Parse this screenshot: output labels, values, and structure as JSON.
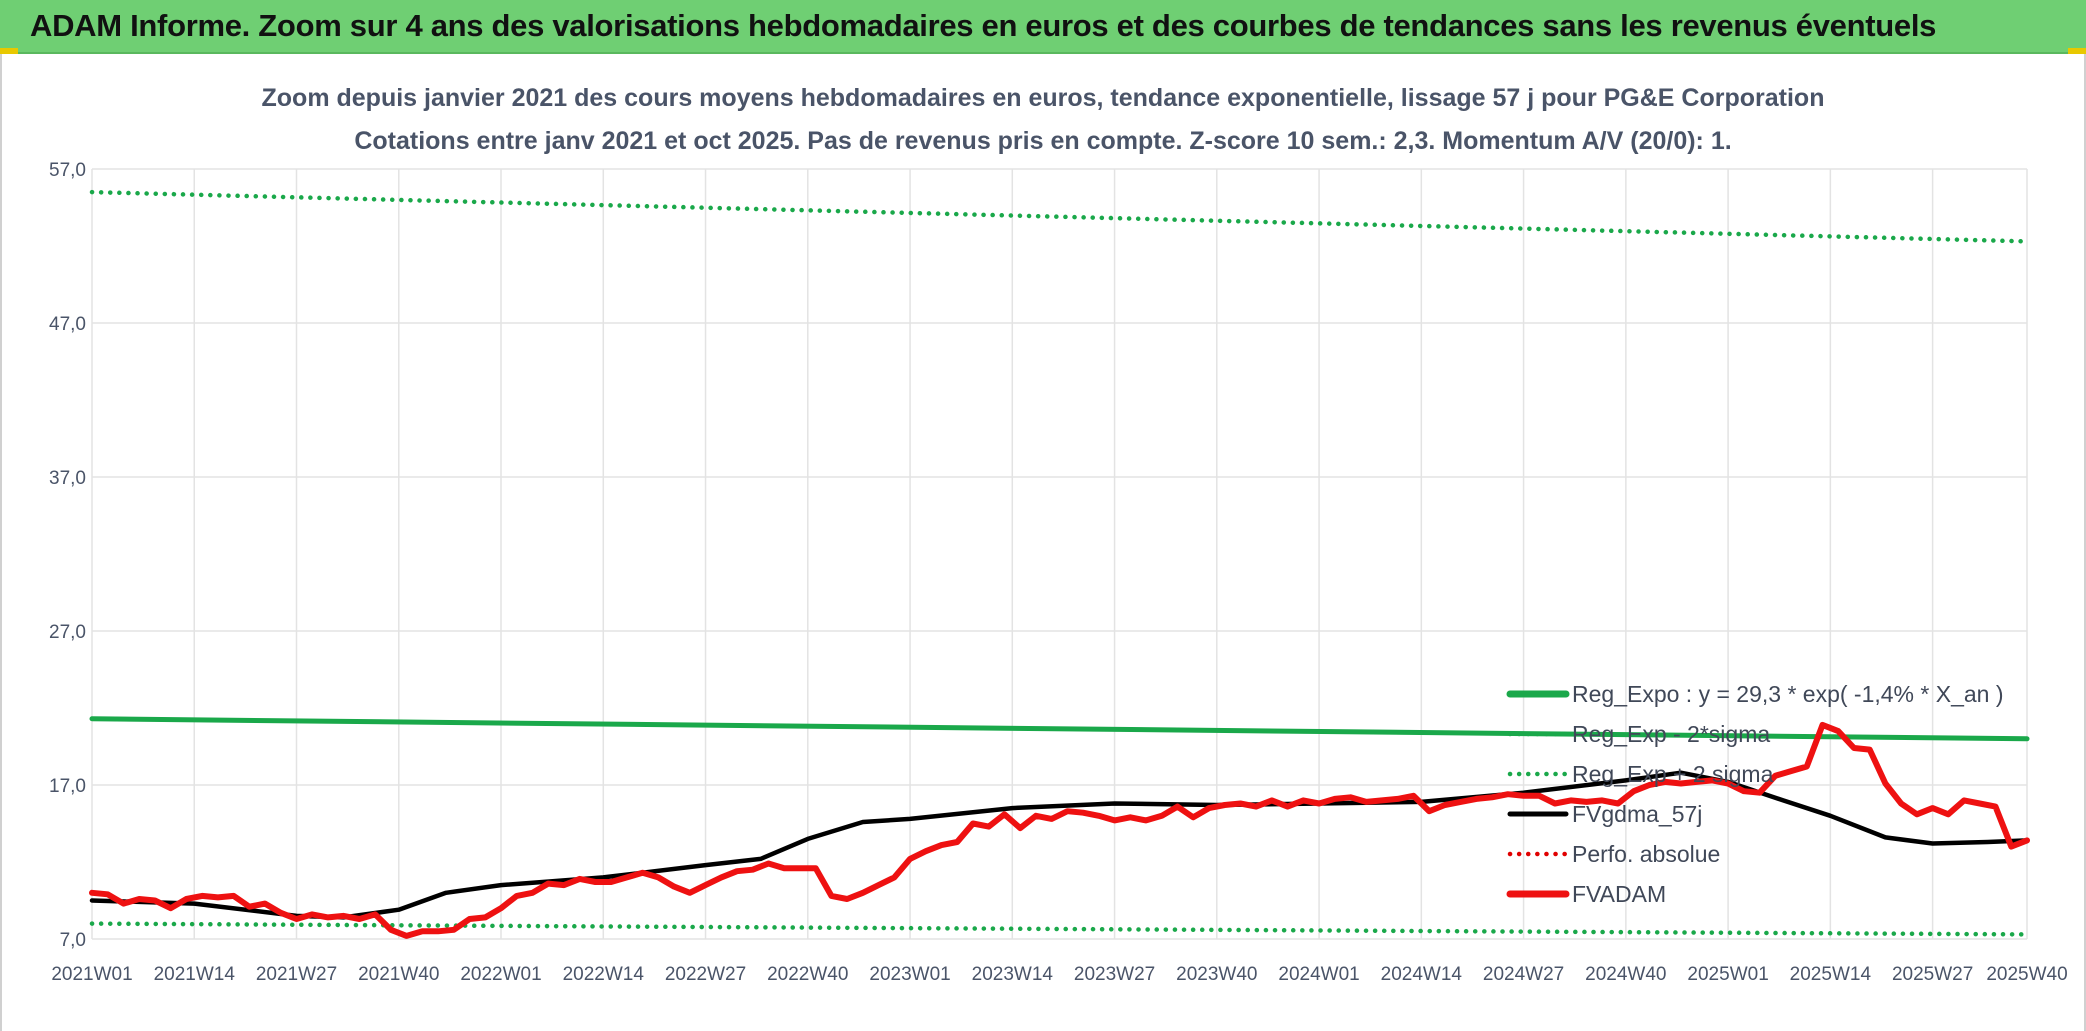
{
  "header": {
    "title": "ADAM Informe. Zoom sur 4 ans des valorisations hebdomadaires en euros et des courbes de tendances sans les revenus éventuels"
  },
  "chart_data": {
    "type": "line",
    "title": "Zoom depuis janvier 2021 des cours moyens hebdomadaires en euros, tendance exponentielle, lissage 57 j pour PG&E Corporation",
    "subtitle": "Cotations entre janv 2021 et oct 2025. Pas de revenus pris en compte. Z-score 10 sem.: 2,3. Momentum A/V (20/0): 1.",
    "xlabel": "",
    "ylabel": "",
    "ylim": [
      7,
      57
    ],
    "yticks": [
      "57,0",
      "47,0",
      "37,0",
      "27,0",
      "17,0",
      "7,0"
    ],
    "yticks_values": [
      57,
      47,
      37,
      27,
      17,
      7
    ],
    "x_tick_labels": [
      "2021W01",
      "2021W14",
      "2021W27",
      "2021W40",
      "2022W01",
      "2022W14",
      "2022W27",
      "2022W40",
      "2023W01",
      "2023W14",
      "2023W27",
      "2023W40",
      "2024W01",
      "2024W14",
      "2024W27",
      "2024W40",
      "2025W01",
      "2025W14",
      "2025W27",
      "2025W40"
    ],
    "grid": true,
    "legend_position": "bottom-right",
    "series": [
      {
        "name": "Reg_Expo : y = 29,3 * exp( -1,4% *  X_an )",
        "color": "#1aa84a",
        "style": "solid",
        "points": [
          [
            0,
            21.3
          ],
          [
            246,
            20.0
          ]
        ]
      },
      {
        "name": "Reg_Exp - 2*sigma",
        "color": "#1aa84a",
        "style": "dotted",
        "points": [
          [
            0,
            8.0
          ],
          [
            246,
            7.3
          ]
        ]
      },
      {
        "name": "Reg_Exp + 2 sigma",
        "color": "#1aa84a",
        "style": "dotted",
        "points": [
          [
            0,
            55.5
          ],
          [
            246,
            52.3
          ]
        ]
      },
      {
        "name": "FVgdma_57j",
        "color": "#000000",
        "style": "solid",
        "points": [
          [
            0,
            9.5
          ],
          [
            13,
            9.3
          ],
          [
            26,
            8.5
          ],
          [
            32,
            8.4
          ],
          [
            39,
            8.9
          ],
          [
            45,
            10.0
          ],
          [
            52,
            10.5
          ],
          [
            65,
            11.0
          ],
          [
            78,
            11.8
          ],
          [
            85,
            12.2
          ],
          [
            91,
            13.5
          ],
          [
            98,
            14.6
          ],
          [
            104,
            14.8
          ],
          [
            117,
            15.5
          ],
          [
            130,
            15.8
          ],
          [
            143,
            15.7
          ],
          [
            156,
            15.8
          ],
          [
            169,
            15.9
          ],
          [
            182,
            16.5
          ],
          [
            195,
            17.3
          ],
          [
            202,
            17.8
          ],
          [
            208,
            17.2
          ],
          [
            215,
            16.0
          ],
          [
            221,
            15.0
          ],
          [
            228,
            13.6
          ],
          [
            234,
            13.2
          ],
          [
            241,
            13.3
          ],
          [
            246,
            13.4
          ]
        ]
      },
      {
        "name": "Perfo. absolue",
        "color": "#e00000",
        "style": "dotted",
        "points": []
      },
      {
        "name": "FVADAM",
        "color": "#ee1111",
        "style": "solid",
        "points": [
          [
            0,
            10.0
          ],
          [
            2,
            9.9
          ],
          [
            4,
            9.3
          ],
          [
            6,
            9.6
          ],
          [
            8,
            9.5
          ],
          [
            10,
            9.0
          ],
          [
            12,
            9.6
          ],
          [
            14,
            9.8
          ],
          [
            16,
            9.7
          ],
          [
            18,
            9.8
          ],
          [
            20,
            9.1
          ],
          [
            22,
            9.3
          ],
          [
            24,
            8.7
          ],
          [
            26,
            8.3
          ],
          [
            28,
            8.6
          ],
          [
            30,
            8.4
          ],
          [
            32,
            8.5
          ],
          [
            34,
            8.3
          ],
          [
            36,
            8.6
          ],
          [
            38,
            7.6
          ],
          [
            40,
            7.2
          ],
          [
            42,
            7.5
          ],
          [
            44,
            7.5
          ],
          [
            46,
            7.6
          ],
          [
            48,
            8.3
          ],
          [
            50,
            8.4
          ],
          [
            52,
            9.0
          ],
          [
            54,
            9.8
          ],
          [
            56,
            10.0
          ],
          [
            58,
            10.6
          ],
          [
            60,
            10.5
          ],
          [
            62,
            10.9
          ],
          [
            64,
            10.7
          ],
          [
            66,
            10.7
          ],
          [
            68,
            11.0
          ],
          [
            70,
            11.3
          ],
          [
            72,
            11.0
          ],
          [
            74,
            10.4
          ],
          [
            76,
            10.0
          ],
          [
            78,
            10.5
          ],
          [
            80,
            11.0
          ],
          [
            82,
            11.4
          ],
          [
            84,
            11.5
          ],
          [
            86,
            11.9
          ],
          [
            88,
            11.6
          ],
          [
            90,
            11.6
          ],
          [
            92,
            11.6
          ],
          [
            94,
            9.8
          ],
          [
            96,
            9.6
          ],
          [
            98,
            10.0
          ],
          [
            100,
            10.5
          ],
          [
            102,
            11.0
          ],
          [
            104,
            12.2
          ],
          [
            106,
            12.7
          ],
          [
            108,
            13.1
          ],
          [
            110,
            13.3
          ],
          [
            112,
            14.5
          ],
          [
            114,
            14.3
          ],
          [
            116,
            15.1
          ],
          [
            118,
            14.2
          ],
          [
            120,
            15.0
          ],
          [
            122,
            14.8
          ],
          [
            124,
            15.3
          ],
          [
            126,
            15.2
          ],
          [
            128,
            15.0
          ],
          [
            130,
            14.7
          ],
          [
            132,
            14.9
          ],
          [
            134,
            14.7
          ],
          [
            136,
            15.0
          ],
          [
            138,
            15.6
          ],
          [
            140,
            14.9
          ],
          [
            142,
            15.5
          ],
          [
            144,
            15.7
          ],
          [
            146,
            15.8
          ],
          [
            148,
            15.6
          ],
          [
            150,
            16.0
          ],
          [
            152,
            15.6
          ],
          [
            154,
            16.0
          ],
          [
            156,
            15.8
          ],
          [
            158,
            16.1
          ],
          [
            160,
            16.2
          ],
          [
            162,
            15.9
          ],
          [
            164,
            16.0
          ],
          [
            166,
            16.1
          ],
          [
            168,
            16.3
          ],
          [
            170,
            15.3
          ],
          [
            172,
            15.7
          ],
          [
            174,
            15.9
          ],
          [
            176,
            16.1
          ],
          [
            178,
            16.2
          ],
          [
            180,
            16.4
          ],
          [
            182,
            16.3
          ],
          [
            184,
            16.3
          ],
          [
            186,
            15.8
          ],
          [
            188,
            16.0
          ],
          [
            190,
            15.9
          ],
          [
            192,
            16.0
          ],
          [
            194,
            15.8
          ],
          [
            196,
            16.6
          ],
          [
            198,
            17.0
          ],
          [
            200,
            17.2
          ],
          [
            202,
            17.1
          ],
          [
            204,
            17.2
          ],
          [
            206,
            17.3
          ],
          [
            208,
            17.1
          ],
          [
            210,
            16.6
          ],
          [
            212,
            16.5
          ],
          [
            214,
            17.6
          ],
          [
            216,
            17.9
          ],
          [
            218,
            18.2
          ],
          [
            220,
            20.9
          ],
          [
            222,
            20.5
          ],
          [
            224,
            19.4
          ],
          [
            226,
            19.3
          ],
          [
            228,
            17.1
          ],
          [
            230,
            15.8
          ],
          [
            232,
            15.1
          ],
          [
            234,
            15.5
          ],
          [
            236,
            15.1
          ],
          [
            238,
            16.0
          ],
          [
            240,
            15.8
          ],
          [
            242,
            15.6
          ],
          [
            244,
            13.0
          ],
          [
            246,
            13.4
          ]
        ]
      }
    ]
  }
}
